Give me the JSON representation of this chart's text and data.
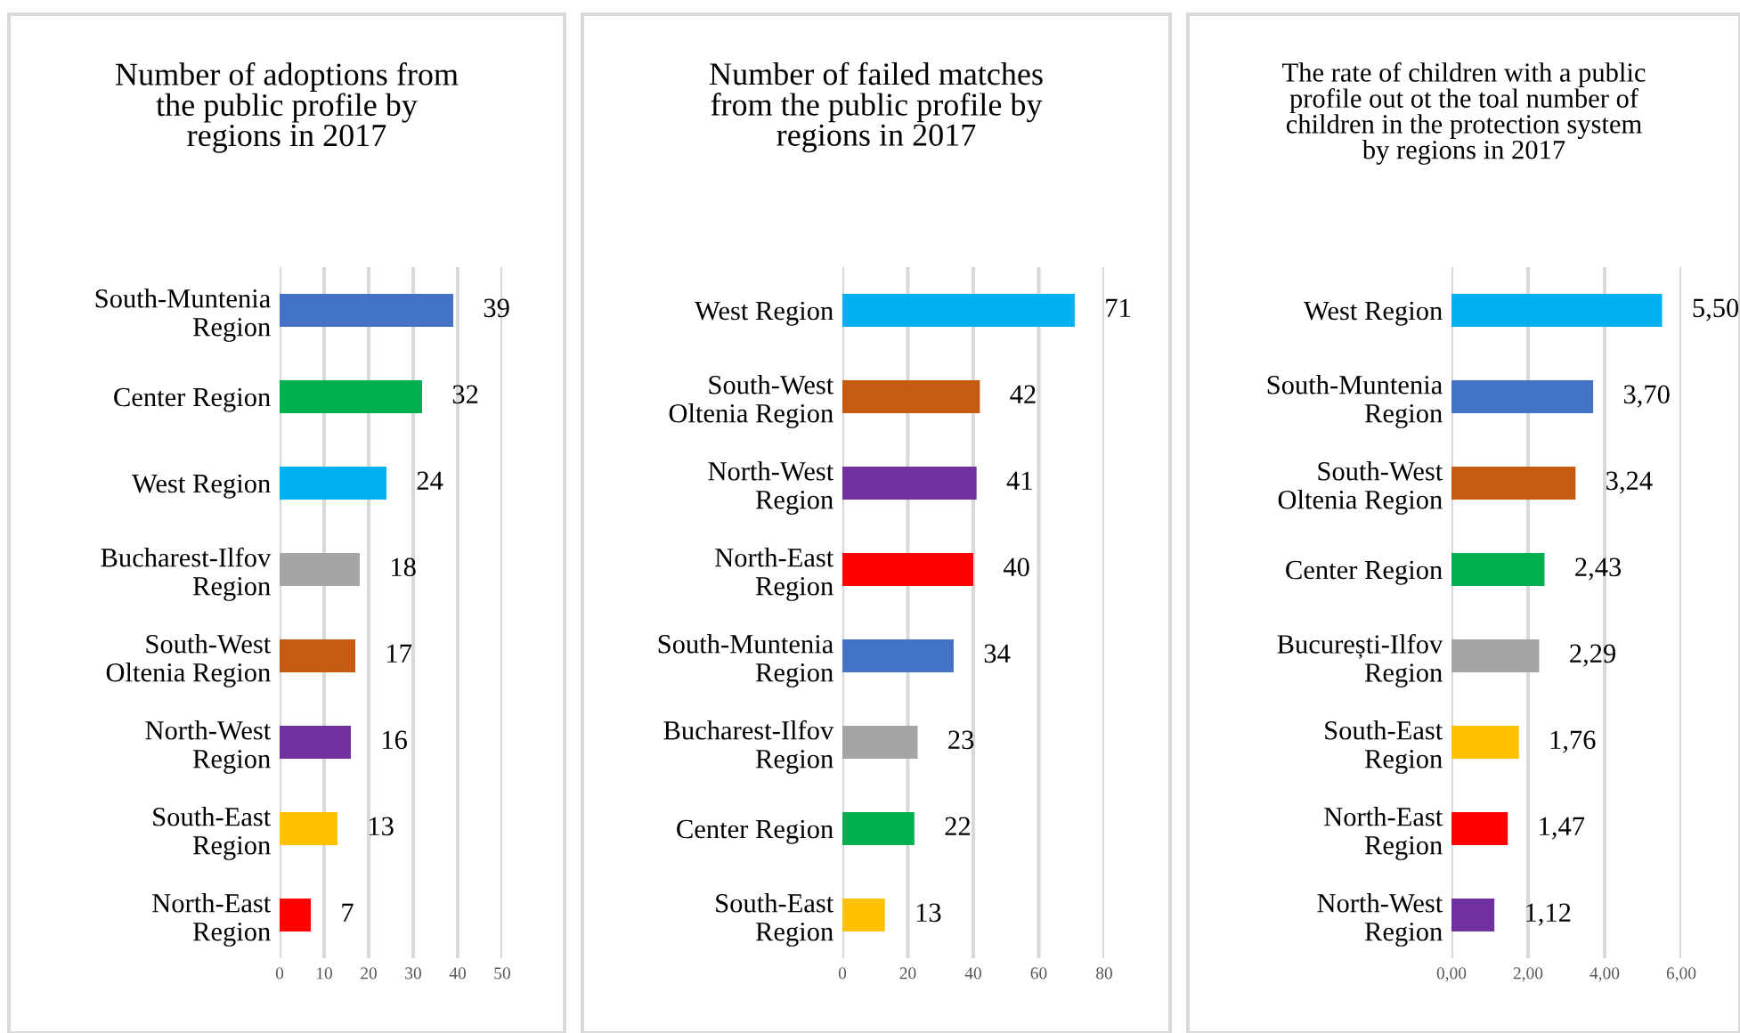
{
  "chart_data": [
    {
      "type": "bar",
      "orientation": "horizontal",
      "title": "Number of adoptions from\nthe public profile by\nregions in 2017",
      "categories": [
        "South-Muntenia\nRegion",
        "Center Region",
        "West Region",
        "Bucharest-Ilfov\nRegion",
        "South-West\nOltenia Region",
        "North-West\nRegion",
        "South-East\nRegion",
        "North-East\nRegion"
      ],
      "values": [
        39,
        32,
        24,
        18,
        17,
        16,
        13,
        7
      ],
      "colors": [
        "#4472c4",
        "#00b050",
        "#00b0f0",
        "#a5a5a5",
        "#c55a11",
        "#7030a0",
        "#ffc000",
        "#ff0000"
      ],
      "xlim": [
        0,
        50
      ],
      "xticks": [
        0,
        10,
        20,
        30,
        40,
        50
      ],
      "grid": "x",
      "data_labels": true
    },
    {
      "type": "bar",
      "orientation": "horizontal",
      "title": "Number of failed matches\nfrom the public profile by\nregions in 2017",
      "categories": [
        "West Region",
        "South-West\nOltenia Region",
        "North-West\nRegion",
        "North-East\nRegion",
        "South-Muntenia\nRegion",
        "Bucharest-Ilfov\nRegion",
        "Center Region",
        "South-East\nRegion"
      ],
      "values": [
        71,
        42,
        41,
        40,
        34,
        23,
        22,
        13
      ],
      "colors": [
        "#00b0f0",
        "#c55a11",
        "#7030a0",
        "#ff0000",
        "#4472c4",
        "#a5a5a5",
        "#00b050",
        "#ffc000"
      ],
      "xlim": [
        0,
        80
      ],
      "xticks": [
        0,
        20,
        40,
        60,
        80
      ],
      "grid": "x",
      "data_labels": true
    },
    {
      "type": "bar",
      "orientation": "horizontal",
      "title": "The rate of children with a public\nprofile out ot the toal number of\nchildren in the protection system\nby regions in 2017",
      "categories": [
        "West Region",
        "South-Muntenia\nRegion",
        "South-West\nOltenia Region",
        "Center Region",
        "București-Ilfov\nRegion",
        "South-East\nRegion",
        "North-East\nRegion",
        "North-West\nRegion"
      ],
      "values": [
        5.5,
        3.7,
        3.24,
        2.43,
        2.29,
        1.76,
        1.47,
        1.12
      ],
      "value_labels": [
        "5,50",
        "3,70",
        "3,24",
        "2,43",
        "2,29",
        "1,76",
        "1,47",
        "1,12"
      ],
      "colors": [
        "#00b0f0",
        "#4472c4",
        "#c55a11",
        "#00b050",
        "#a5a5a5",
        "#ffc000",
        "#ff0000",
        "#7030a0"
      ],
      "xlim": [
        0,
        6
      ],
      "xticks": [
        {
          "value": 0,
          "label": "0,00"
        },
        {
          "value": 2,
          "label": "2,00"
        },
        {
          "value": 4,
          "label": "4,00"
        },
        {
          "value": 6,
          "label": "6,00"
        }
      ],
      "grid": "x"
    }
  ]
}
